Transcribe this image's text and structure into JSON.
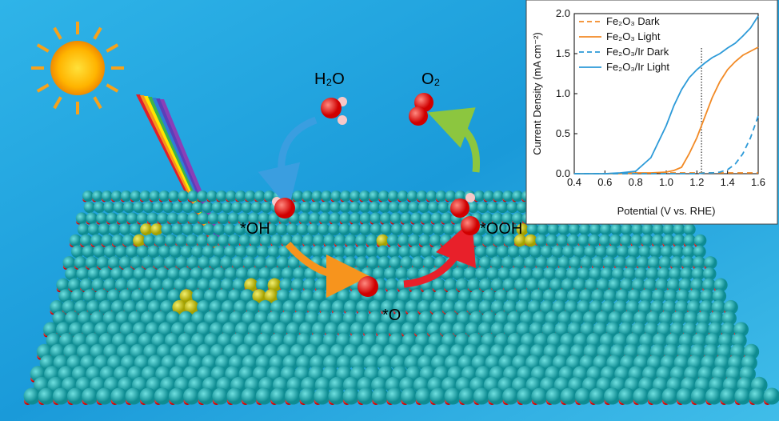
{
  "labels": {
    "h2o": "H₂O",
    "o2": "O₂",
    "oh": "*OH",
    "ooh": "*OOH",
    "o": "*O"
  },
  "chart_data": {
    "type": "line",
    "x_label": "Potential (V vs. RHE)",
    "y_label": "Current Density (mA cm⁻²)",
    "x": [
      0.4,
      0.5,
      0.6,
      0.7,
      0.8,
      0.9,
      1.0,
      1.05,
      1.1,
      1.15,
      1.2,
      1.25,
      1.3,
      1.35,
      1.4,
      1.45,
      1.5,
      1.55,
      1.6
    ],
    "series": [
      {
        "name": "Fe₂O₃ Dark",
        "color": "#f28a25",
        "dash": true,
        "values": [
          0,
          0,
          0,
          0,
          0,
          0,
          0.01,
          0.01,
          0.01,
          0.01,
          0.01,
          0.01,
          0.01,
          0.01,
          0.01,
          0.01,
          0.01,
          0.01,
          0.01
        ]
      },
      {
        "name": "Fe₂O₃ Light",
        "color": "#f28a25",
        "dash": false,
        "values": [
          0,
          0,
          0,
          0,
          0.01,
          0.01,
          0.02,
          0.04,
          0.08,
          0.25,
          0.45,
          0.7,
          0.95,
          1.15,
          1.3,
          1.4,
          1.48,
          1.53,
          1.58
        ]
      },
      {
        "name": "Fe₂O₃/Ir Dark",
        "color": "#2c9ad8",
        "dash": true,
        "values": [
          0,
          0,
          0,
          0,
          0,
          0,
          0,
          0,
          0,
          0,
          0,
          0.01,
          0.01,
          0.02,
          0.05,
          0.12,
          0.25,
          0.45,
          0.72
        ]
      },
      {
        "name": "Fe₂O₃/Ir Light",
        "color": "#2c9ad8",
        "dash": false,
        "values": [
          0,
          0,
          0,
          0.01,
          0.03,
          0.2,
          0.6,
          0.85,
          1.05,
          1.2,
          1.3,
          1.38,
          1.45,
          1.5,
          1.57,
          1.63,
          1.72,
          1.82,
          1.97
        ]
      }
    ],
    "vline": 1.23,
    "xlim": [
      0.4,
      1.6
    ],
    "xticks": [
      0.4,
      0.6,
      0.8,
      {
        "value": 1.0,
        "label": "1.0"
      },
      1.2,
      1.4,
      1.6
    ],
    "ylim": [
      0,
      2.0
    ],
    "yticks": [
      {
        "value": 0,
        "label": "0.0"
      },
      0.5,
      {
        "value": 1.0,
        "label": "1.0"
      },
      1.5,
      {
        "value": 2.0,
        "label": "2.0"
      }
    ],
    "legend": "upper-left"
  }
}
